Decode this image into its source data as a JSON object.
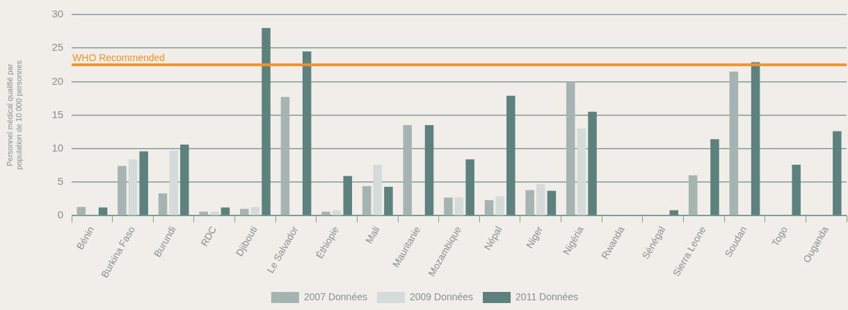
{
  "chart_data": {
    "type": "bar",
    "ylabel": "Personnel médical qualifié par population de 10 000 personnes",
    "categories": [
      "Bénin",
      "Burkina Faso",
      "Burundi",
      "RDC",
      "Djibouti",
      "Le Salvador",
      "Éthiopie",
      "Mali",
      "Mauritanie",
      "Mozambique",
      "Népal",
      "Niger",
      "Nigéria",
      "Rwanda",
      "Sénégal",
      "Sierra Leone",
      "Soudan",
      "Togo",
      "Ouganda"
    ],
    "series": [
      {
        "name": "2007 Données",
        "color": "#a5b3b1",
        "values": [
          1.3,
          7.4,
          3.3,
          0.6,
          1,
          17.7,
          0.6,
          4.4,
          13.5,
          2.7,
          2.3,
          3.8,
          20,
          null,
          null,
          6,
          21.5,
          null,
          null
        ]
      },
      {
        "name": "2009 Données",
        "color": "#d5dbda",
        "values": [
          null,
          8.4,
          9.7,
          0.6,
          1.3,
          null,
          0.8,
          7.6,
          null,
          2.7,
          2.9,
          4.7,
          13,
          null,
          null,
          null,
          null,
          null,
          null
        ]
      },
      {
        "name": "2011 Données",
        "color": "#5d827e",
        "values": [
          1.2,
          9.6,
          10.6,
          1.2,
          28,
          24.5,
          5.9,
          4.3,
          13.5,
          8.4,
          17.9,
          3.7,
          15.5,
          null,
          0.8,
          11.4,
          22.9,
          7.6,
          12.6
        ]
      }
    ],
    "ylim": [
      0,
      30
    ],
    "yticks": [
      0,
      5,
      10,
      15,
      20,
      25,
      30
    ],
    "grid": "y",
    "legend": "bottom",
    "ref_lines": [
      {
        "axis": "y",
        "value": 22.5,
        "label": "WHO Recommended",
        "color": "#f39325"
      }
    ]
  }
}
